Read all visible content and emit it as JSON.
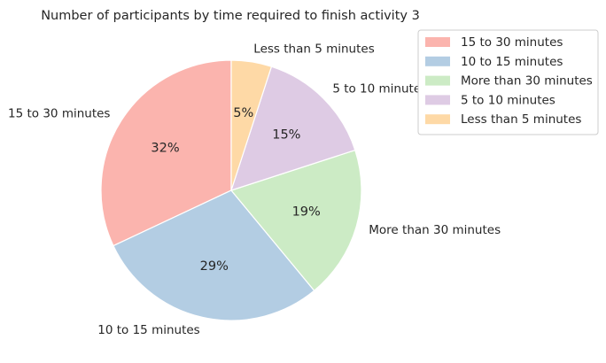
{
  "chart_data": {
    "type": "pie",
    "title": "Number of participants by time required to finish activity 3",
    "slices": [
      {
        "label": "15 to 30 minutes",
        "value": 32,
        "pct_label": "32%",
        "color": "#fbb4ae"
      },
      {
        "label": "10 to 15 minutes",
        "value": 29,
        "pct_label": "29%",
        "color": "#b3cde3"
      },
      {
        "label": "More than 30 minutes",
        "value": 19,
        "pct_label": "19%",
        "color": "#ccebc5"
      },
      {
        "label": "5 to 10 minutes",
        "value": 15,
        "pct_label": "15%",
        "color": "#decbe4"
      },
      {
        "label": "Less than 5 minutes",
        "value": 5,
        "pct_label": "5%",
        "color": "#fed9a6"
      }
    ],
    "start_angle_deg": 90,
    "direction": "counterclockwise",
    "legend": {
      "placement": "top-right",
      "items": [
        "15 to 30 minutes",
        "10 to 15 minutes",
        "More than 30 minutes",
        "5 to 10 minutes",
        "Less than 5 minutes"
      ]
    }
  }
}
